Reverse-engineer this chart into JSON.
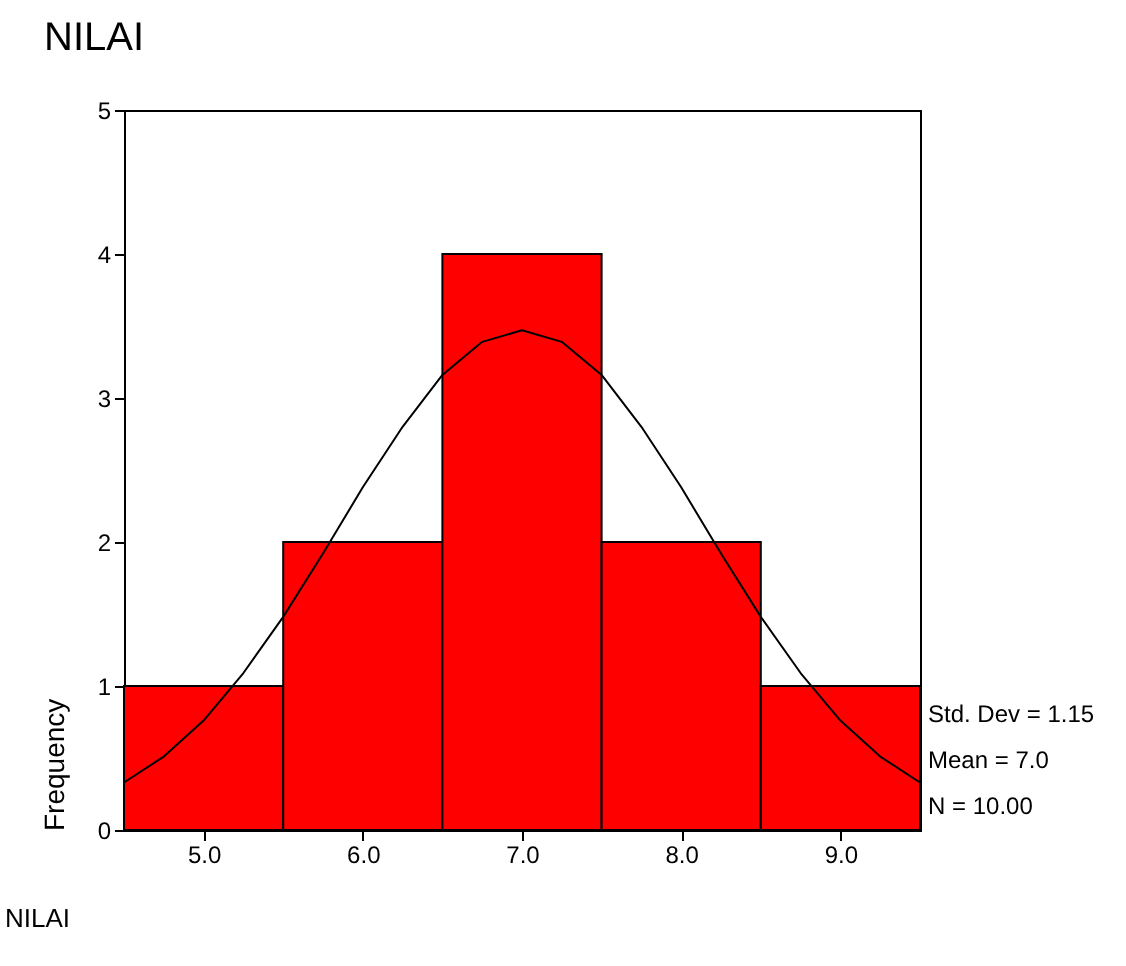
{
  "chart_data": {
    "type": "histogram",
    "title": "NILAI",
    "xlabel": "NILAI",
    "ylabel": "Frequency",
    "bins": [
      4.5,
      5.5,
      6.5,
      7.5,
      8.5,
      9.5
    ],
    "values": [
      1,
      2,
      4,
      2,
      1
    ],
    "color": "#ff0000",
    "series": [
      {
        "type": "line",
        "color": "#000000",
        "x": [
          4.5,
          4.75,
          5.0,
          5.25,
          5.5,
          5.75,
          6.0,
          6.25,
          6.5,
          6.75,
          7.0,
          7.25,
          7.5,
          7.75,
          8.0,
          8.25,
          8.5,
          8.75,
          9.0,
          9.25,
          9.5
        ],
        "values": [
          0.33,
          0.51,
          0.76,
          1.09,
          1.48,
          1.92,
          2.38,
          2.8,
          3.16,
          3.39,
          3.47,
          3.39,
          3.16,
          2.8,
          2.38,
          1.92,
          1.48,
          1.09,
          0.76,
          0.51,
          0.33
        ]
      }
    ],
    "xlim": [
      4.5,
      9.5
    ],
    "xticks": [
      {
        "value": 5,
        "label": "5.0"
      },
      {
        "value": 6,
        "label": "6.0"
      },
      {
        "value": 7,
        "label": "7.0"
      },
      {
        "value": 8,
        "label": "8.0"
      },
      {
        "value": 9,
        "label": "9.0"
      }
    ],
    "ylim": [
      0,
      5
    ],
    "yticks": [
      0,
      1,
      2,
      3,
      4,
      5
    ],
    "grid": false,
    "annotations": [
      "Std. Dev = 1.15",
      "Mean = 7.0",
      "N = 10.00"
    ]
  }
}
